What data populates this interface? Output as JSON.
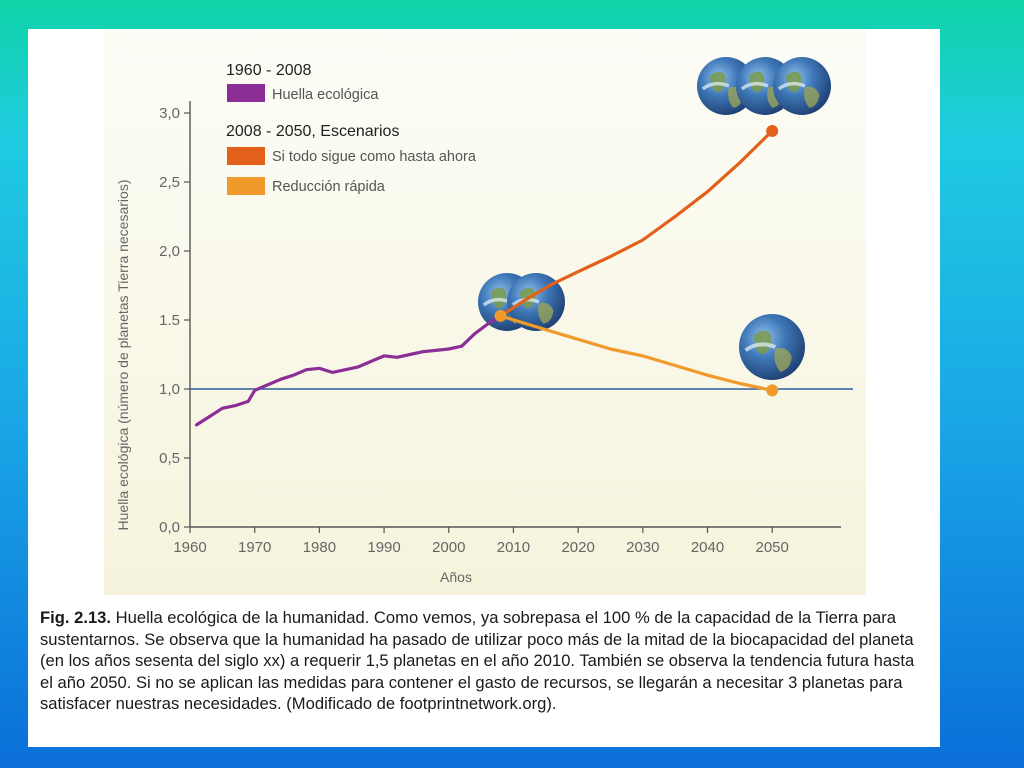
{
  "colors": {
    "historical": "#8b2f97",
    "business_as_usual": "#e2601a",
    "rapid_reduction": "#f09a2c",
    "capacity_line": "#2a5d9c",
    "chart_bg_top": "#fdfdf7",
    "chart_bg_bottom": "#f6f3dc"
  },
  "chart_data": {
    "type": "line",
    "xlabel": "Años",
    "ylabel": "Huella ecológica (número de planetas Tierra necesarios)",
    "xlim": [
      1960,
      2056
    ],
    "ylim": [
      0,
      3.0
    ],
    "x_ticks": [
      "1960",
      "1970",
      "1980",
      "1990",
      "2000",
      "2010",
      "2020",
      "2030",
      "2040",
      "2050"
    ],
    "y_ticks": [
      "0,0",
      "0,5",
      "1,0",
      "1.5",
      "2,0",
      "2,5",
      "3,0"
    ],
    "reference_line": {
      "y": 1.0
    },
    "legend": {
      "group1_title": "1960 - 2008",
      "group1_items": [
        "Huella ecológica"
      ],
      "group2_title": "2008 - 2050, Escenarios",
      "group2_items": [
        "Si todo sigue como hasta ahora",
        "Reducción rápida"
      ]
    },
    "series": [
      {
        "name": "Huella ecológica",
        "x": [
          1961,
          1963,
          1965,
          1967,
          1969,
          1970,
          1972,
          1974,
          1976,
          1978,
          1980,
          1982,
          1984,
          1986,
          1988,
          1990,
          1992,
          1994,
          1996,
          1998,
          2000,
          2002,
          2004,
          2006,
          2008
        ],
        "y": [
          0.74,
          0.8,
          0.86,
          0.88,
          0.91,
          0.99,
          1.03,
          1.07,
          1.1,
          1.14,
          1.15,
          1.12,
          1.14,
          1.16,
          1.2,
          1.24,
          1.23,
          1.25,
          1.27,
          1.28,
          1.29,
          1.31,
          1.4,
          1.47,
          1.53
        ]
      },
      {
        "name": "Si todo sigue como hasta ahora",
        "x": [
          2008,
          2012,
          2016,
          2020,
          2025,
          2030,
          2035,
          2040,
          2045,
          2050
        ],
        "y": [
          1.53,
          1.65,
          1.76,
          1.85,
          1.96,
          2.08,
          2.25,
          2.43,
          2.64,
          2.87
        ]
      },
      {
        "name": "Reducción rápida",
        "x": [
          2008,
          2015,
          2020,
          2025,
          2030,
          2035,
          2040,
          2045,
          2050
        ],
        "y": [
          1.53,
          1.43,
          1.36,
          1.29,
          1.24,
          1.17,
          1.1,
          1.04,
          0.99
        ]
      }
    ]
  },
  "caption": {
    "label": "Fig. 2.13.",
    "text": " Huella ecológica de la humanidad. Como vemos, ya sobrepasa el 100 % de la capacidad de la Tierra para sustentarnos. Se observa que la humanidad ha pasado de utilizar poco más de la mitad de la biocapacidad del planeta (en los años sesenta del siglo xx) a requerir 1,5 planetas en el año 2010. También se observa la tendencia futura hasta el año 2050. Si no se aplican las medidas para contener el gasto de recursos, se llegarán a necesitar 3 planetas para satisfacer nuestras necesidades. (Modificado de footprintnetwork.org)."
  }
}
